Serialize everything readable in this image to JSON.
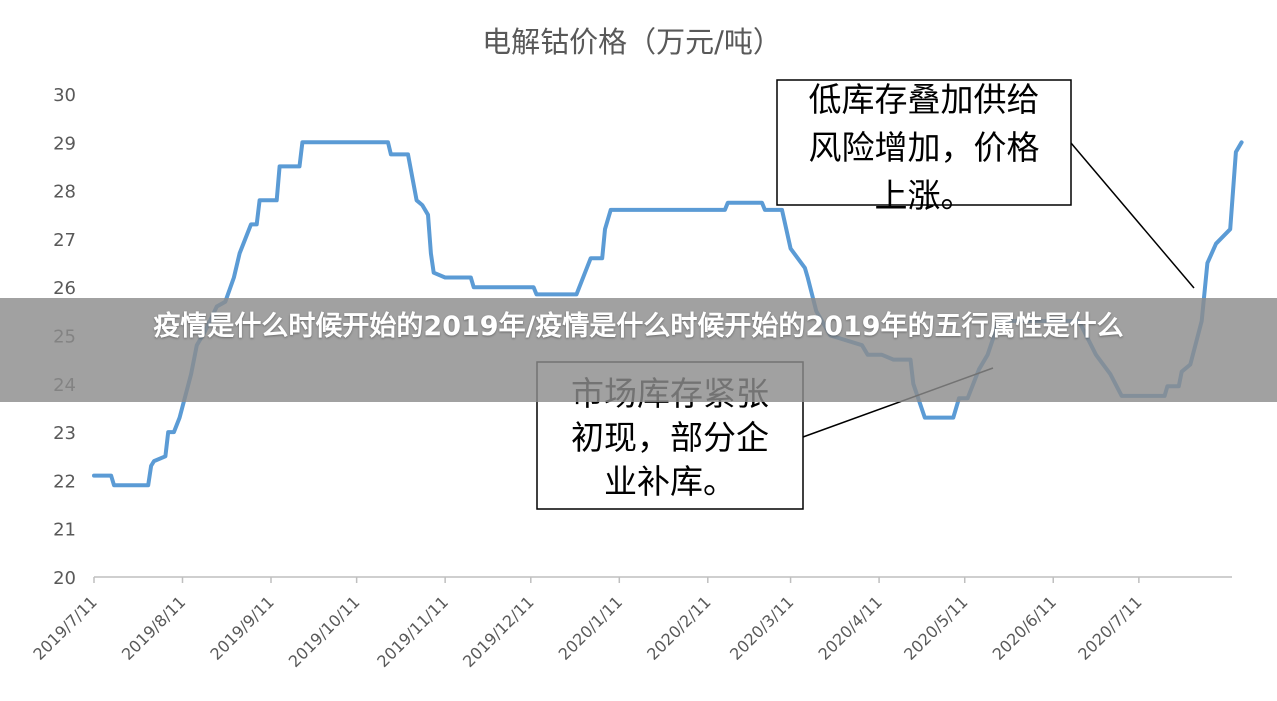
{
  "banner": {
    "title": "疫情是什么时候开始的2019年/疫情是什么时候开始的2019年的五行属性是什么"
  },
  "chart_data": {
    "type": "line",
    "title": "电解钴价格（万元/吨）",
    "xlabel": "",
    "ylabel": "",
    "ylim": [
      20,
      30
    ],
    "yticks": [
      "20",
      "21",
      "22",
      "23",
      "24",
      "25",
      "26",
      "27",
      "28",
      "29",
      "30"
    ],
    "xticks": [
      "2019/7/11",
      "2019/8/11",
      "2019/9/11",
      "2019/10/11",
      "2019/11/11",
      "2019/12/11",
      "2020/1/11",
      "2020/2/11",
      "2020/3/11",
      "2020/4/11",
      "2020/5/11",
      "2020/6/11",
      "2020/7/11"
    ],
    "grid": false,
    "legend": "none",
    "series_color": "#5B9BD5",
    "series": [
      {
        "points": [
          [
            "2019-07-11",
            22.1
          ],
          [
            "2019-07-17",
            22.1
          ],
          [
            "2019-07-18",
            21.9
          ],
          [
            "2019-07-30",
            21.9
          ],
          [
            "2019-07-31",
            22.3
          ],
          [
            "2019-08-01",
            22.4
          ],
          [
            "2019-08-05",
            22.5
          ],
          [
            "2019-08-06",
            23.0
          ],
          [
            "2019-08-08",
            23.0
          ],
          [
            "2019-08-10",
            23.3
          ],
          [
            "2019-08-14",
            24.2
          ],
          [
            "2019-08-16",
            24.8
          ],
          [
            "2019-08-19",
            25.1
          ],
          [
            "2019-08-23",
            25.6
          ],
          [
            "2019-08-26",
            25.7
          ],
          [
            "2019-08-29",
            26.2
          ],
          [
            "2019-08-31",
            26.7
          ],
          [
            "2019-09-02",
            27.0
          ],
          [
            "2019-09-04",
            27.3
          ],
          [
            "2019-09-06",
            27.3
          ],
          [
            "2019-09-07",
            27.8
          ],
          [
            "2019-09-13",
            27.8
          ],
          [
            "2019-09-14",
            28.5
          ],
          [
            "2019-09-21",
            28.5
          ],
          [
            "2019-09-22",
            29.0
          ],
          [
            "2019-10-22",
            29.0
          ],
          [
            "2019-10-23",
            28.75
          ],
          [
            "2019-10-29",
            28.75
          ],
          [
            "2019-11-01",
            27.8
          ],
          [
            "2019-11-03",
            27.7
          ],
          [
            "2019-11-05",
            27.5
          ],
          [
            "2019-11-06",
            26.7
          ],
          [
            "2019-11-07",
            26.3
          ],
          [
            "2019-11-11",
            26.2
          ],
          [
            "2019-11-20",
            26.2
          ],
          [
            "2019-11-21",
            26.0
          ],
          [
            "2019-12-12",
            26.0
          ],
          [
            "2019-12-13",
            25.85
          ],
          [
            "2019-12-27",
            25.85
          ],
          [
            "2019-12-30",
            26.3
          ],
          [
            "2020-01-01",
            26.6
          ],
          [
            "2020-01-05",
            26.6
          ],
          [
            "2020-01-06",
            27.2
          ],
          [
            "2020-01-08",
            27.6
          ],
          [
            "2020-02-17",
            27.6
          ],
          [
            "2020-02-18",
            27.75
          ],
          [
            "2020-03-01",
            27.75
          ],
          [
            "2020-03-02",
            27.6
          ],
          [
            "2020-03-08",
            27.6
          ],
          [
            "2020-03-11",
            26.8
          ],
          [
            "2020-03-16",
            26.4
          ],
          [
            "2020-03-17",
            26.2
          ],
          [
            "2020-03-20",
            25.5
          ],
          [
            "2020-03-25",
            25.0
          ],
          [
            "2020-04-05",
            24.8
          ],
          [
            "2020-04-07",
            24.6
          ],
          [
            "2020-04-12",
            24.6
          ],
          [
            "2020-04-16",
            24.5
          ],
          [
            "2020-04-22",
            24.5
          ],
          [
            "2020-04-23",
            24.0
          ],
          [
            "2020-04-27",
            23.3
          ],
          [
            "2020-05-07",
            23.3
          ],
          [
            "2020-05-09",
            23.7
          ],
          [
            "2020-05-12",
            23.7
          ],
          [
            "2020-05-16",
            24.3
          ],
          [
            "2020-05-19",
            24.6
          ],
          [
            "2020-05-23",
            25.3
          ],
          [
            "2020-06-20",
            25.3
          ],
          [
            "2020-06-26",
            24.6
          ],
          [
            "2020-07-01",
            24.2
          ],
          [
            "2020-07-05",
            23.75
          ],
          [
            "2020-07-20",
            23.75
          ],
          [
            "2020-07-21",
            23.95
          ],
          [
            "2020-07-25",
            23.95
          ],
          [
            "2020-07-26",
            24.25
          ],
          [
            "2020-07-29",
            24.4
          ],
          [
            "2020-08-02",
            25.3
          ],
          [
            "2020-08-04",
            26.5
          ],
          [
            "2020-08-07",
            26.9
          ],
          [
            "2020-08-12",
            27.2
          ],
          [
            "2020-08-14",
            28.8
          ],
          [
            "2020-08-16",
            29.0
          ]
        ]
      }
    ],
    "annotations": [
      {
        "lines": [
          "低库存叠加供给",
          "风险增加，价格",
          "上涨。"
        ]
      },
      {
        "lines": [
          "市场库存紧张",
          "初现，部分企",
          "业补库。"
        ]
      }
    ]
  }
}
